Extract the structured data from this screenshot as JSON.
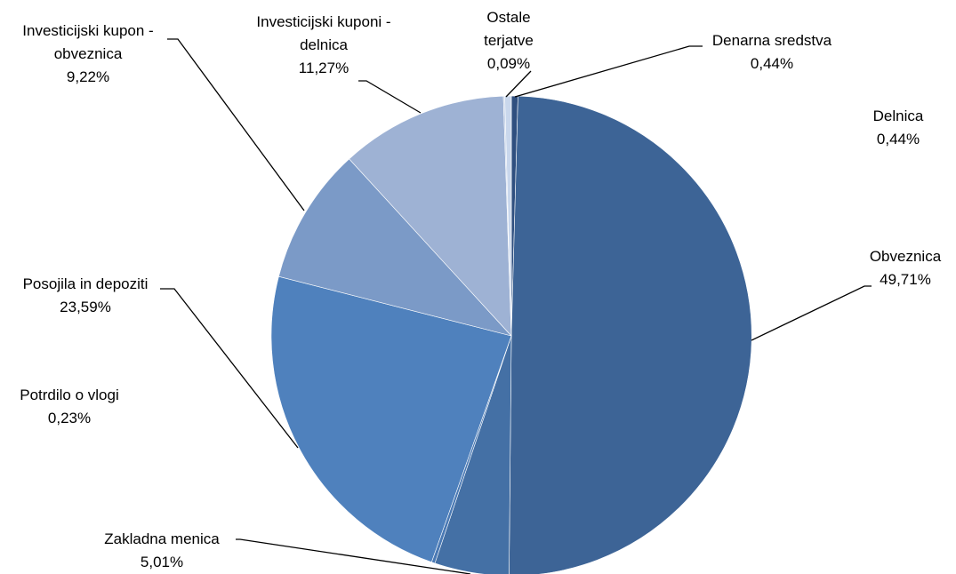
{
  "chart_data": {
    "type": "pie",
    "title": "",
    "start_angle_deg": 0,
    "direction": "clockwise",
    "slices": [
      {
        "name": "Denarna sredstva",
        "value": 0.44,
        "label": "0,44%",
        "color": "#2f4f7f"
      },
      {
        "name": "Obveznica",
        "value": 49.71,
        "label": "49,71%",
        "color": "#3d6496"
      },
      {
        "name": "Zakladna menica",
        "value": 5.01,
        "label": "5,01%",
        "color": "#4470a5"
      },
      {
        "name": "Potrdilo o vlogi",
        "value": 0.23,
        "label": "0,23%",
        "color": "#4a79b4"
      },
      {
        "name": "Posojila in depoziti",
        "value": 23.59,
        "label": "23,59%",
        "color": "#4f81bd"
      },
      {
        "name": "Investicijski kupon - obveznica",
        "value": 9.22,
        "label": "9,22%",
        "color": "#7b9ac7"
      },
      {
        "name": "Investicijski kuponi - delnica",
        "value": 11.27,
        "label": "11,27%",
        "color": "#9eb2d4"
      },
      {
        "name": "Ostale terjatve",
        "value": 0.09,
        "label": "0,09%",
        "color": "#b9c9e3"
      },
      {
        "name": "Delnica",
        "value": 0.44,
        "label": "0,44%",
        "color": "#c9d7ec"
      }
    ]
  },
  "labels": {
    "denarna": {
      "name": "Denarna sredstva",
      "pct": "0,44%"
    },
    "delnica": {
      "name": "Delnica",
      "pct": "0,44%"
    },
    "obveznica": {
      "name": "Obveznica",
      "pct": "49,71%"
    },
    "zakladna": {
      "name": "Zakladna menica",
      "pct": "5,01%"
    },
    "potrdilo": {
      "name": "Potrdilo o vlogi",
      "pct": "0,23%"
    },
    "posojila": {
      "name": "Posojila in depoziti",
      "pct": "23,59%"
    },
    "ik_obv": {
      "name1": "Investicijski kupon -",
      "name2": "obveznica",
      "pct": "9,22%"
    },
    "ik_del": {
      "name1": "Investicijski kuponi -",
      "name2": "delnica",
      "pct": "11,27%"
    },
    "ostale": {
      "name1": "Ostale",
      "name2": "terjatve",
      "pct": "0,09%"
    }
  }
}
